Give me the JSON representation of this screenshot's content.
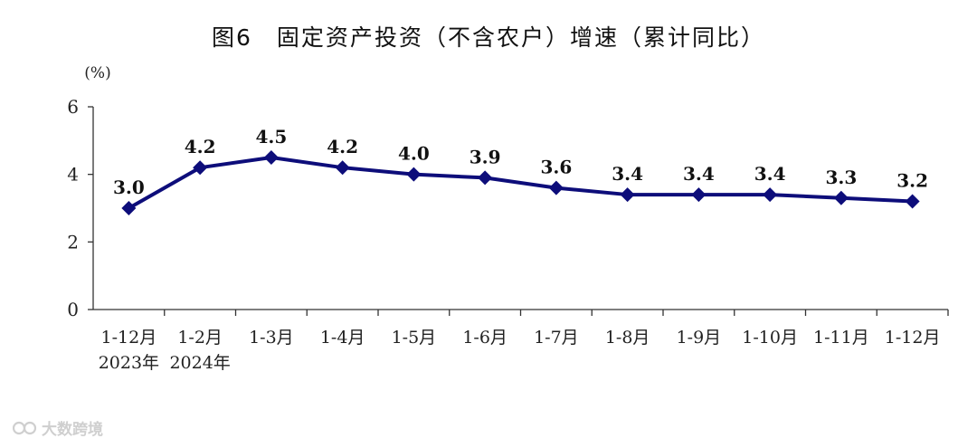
{
  "chart_data": {
    "type": "line",
    "title": "图6　固定资产投资（不含农户）增速（累计同比）",
    "ylabel": "(%)",
    "xlabel": "",
    "ylim": [
      0,
      6
    ],
    "yticks": [
      "0",
      "2",
      "4",
      "6"
    ],
    "categories": [
      "1-12月",
      "1-2月",
      "1-3月",
      "1-4月",
      "1-5月",
      "1-6月",
      "1-7月",
      "1-8月",
      "1-9月",
      "1-10月",
      "1-11月",
      "1-12月"
    ],
    "year_labels": [
      {
        "category_index": 0,
        "label": "2023年"
      },
      {
        "category_index": 1,
        "label": "2024年"
      }
    ],
    "series": [
      {
        "values": [
          3.0,
          4.2,
          4.5,
          4.2,
          4.0,
          3.9,
          3.6,
          3.4,
          3.4,
          3.4,
          3.3,
          3.2
        ],
        "color": "#0d0d7a",
        "marker": "diamond"
      }
    ],
    "data_labels": [
      "3.0",
      "4.2",
      "4.5",
      "4.2",
      "4.0",
      "3.9",
      "3.6",
      "3.4",
      "3.4",
      "3.4",
      "3.3",
      "3.2"
    ],
    "grid": false,
    "legend": "none"
  },
  "watermark": {
    "text": "大数跨境"
  }
}
